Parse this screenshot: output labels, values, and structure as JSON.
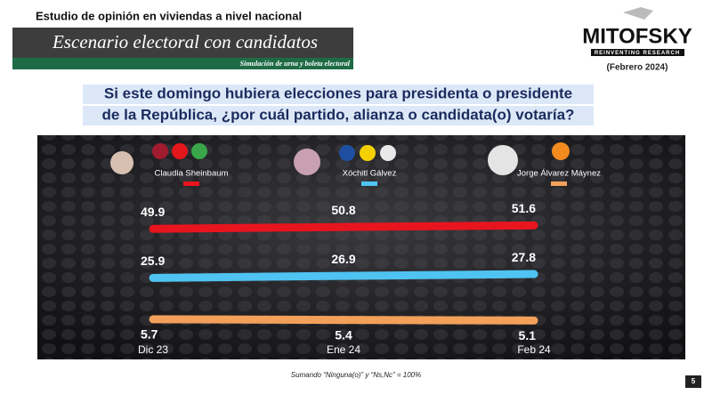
{
  "header": {
    "survey": "Estudio de opinión en viviendas a nivel nacional",
    "title": "Escenario electoral con candidatos",
    "subtitle": "Simulación de urna y boleta electoral",
    "brand": "MITOFSKY",
    "tagline": "REINVENTING RESEARCH",
    "date": "(Febrero 2024)"
  },
  "chart_data": {
    "type": "line",
    "title": [
      "Si este domingo hubiera elecciones para presidenta o presidente",
      "de la República, ¿por cuál partido, alianza o candidata(o) votaría?"
    ],
    "categories": [
      "Dic 23",
      "Ene 24",
      "Feb 24"
    ],
    "series": [
      {
        "name": "Claudia Sheinbaum",
        "color": "#e8151f",
        "values": [
          49.9,
          50.8,
          51.6
        ]
      },
      {
        "name": "Xóchitl Gálvez",
        "color": "#4fc3f2",
        "values": [
          25.9,
          26.9,
          27.8
        ]
      },
      {
        "name": "Jorge Álvarez Máynez",
        "color": "#f3a05a",
        "values": [
          5.7,
          5.4,
          5.1
        ]
      }
    ],
    "note": "Sumando “Ninguna(o)” y “Ns,Nc” = 100%"
  },
  "page_number": "5"
}
